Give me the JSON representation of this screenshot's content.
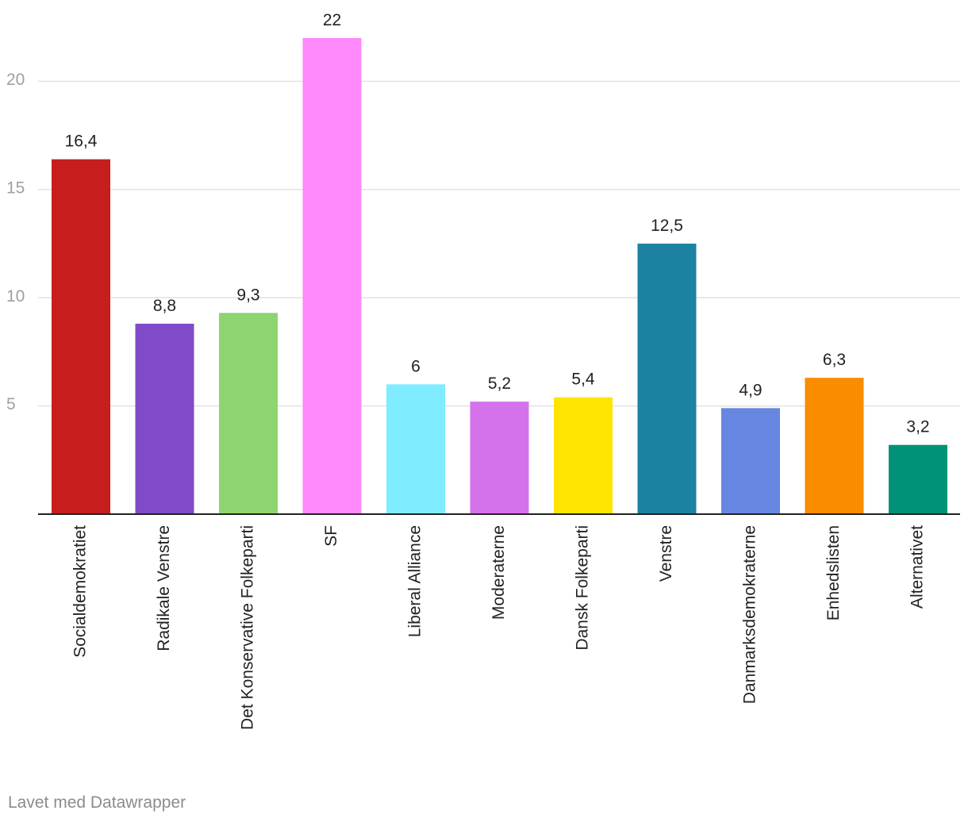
{
  "credit": "Lavet med Datawrapper",
  "chart_data": {
    "type": "bar",
    "title": "",
    "xlabel": "",
    "ylabel": "",
    "ylim": [
      0,
      22
    ],
    "yticks": [
      "5",
      "10",
      "15",
      "20"
    ],
    "ytick_values": [
      5,
      10,
      15,
      20
    ],
    "grid": true,
    "categories": [
      "Socialdemokratiet",
      "Radikale Venstre",
      "Det Konservative Folkeparti",
      "SF",
      "Liberal Alliance",
      "Moderaterne",
      "Dansk Folkeparti",
      "Venstre",
      "Danmarksdemokraterne",
      "Enhedslisten",
      "Alternativet"
    ],
    "values": [
      16.4,
      8.8,
      9.3,
      22,
      6,
      5.2,
      5.4,
      12.5,
      4.9,
      6.3,
      3.2
    ],
    "value_labels": [
      "16,4",
      "8,8",
      "9,3",
      "22",
      "6",
      "5,2",
      "5,4",
      "12,5",
      "4,9",
      "6,3",
      "3,2"
    ],
    "colors": [
      "#c71e1d",
      "#7f4bc8",
      "#8dd56f",
      "#ff88fa",
      "#80ecff",
      "#d472ec",
      "#ffe400",
      "#1d81a2",
      "#6786e1",
      "#fa8c00",
      "#009278"
    ]
  }
}
